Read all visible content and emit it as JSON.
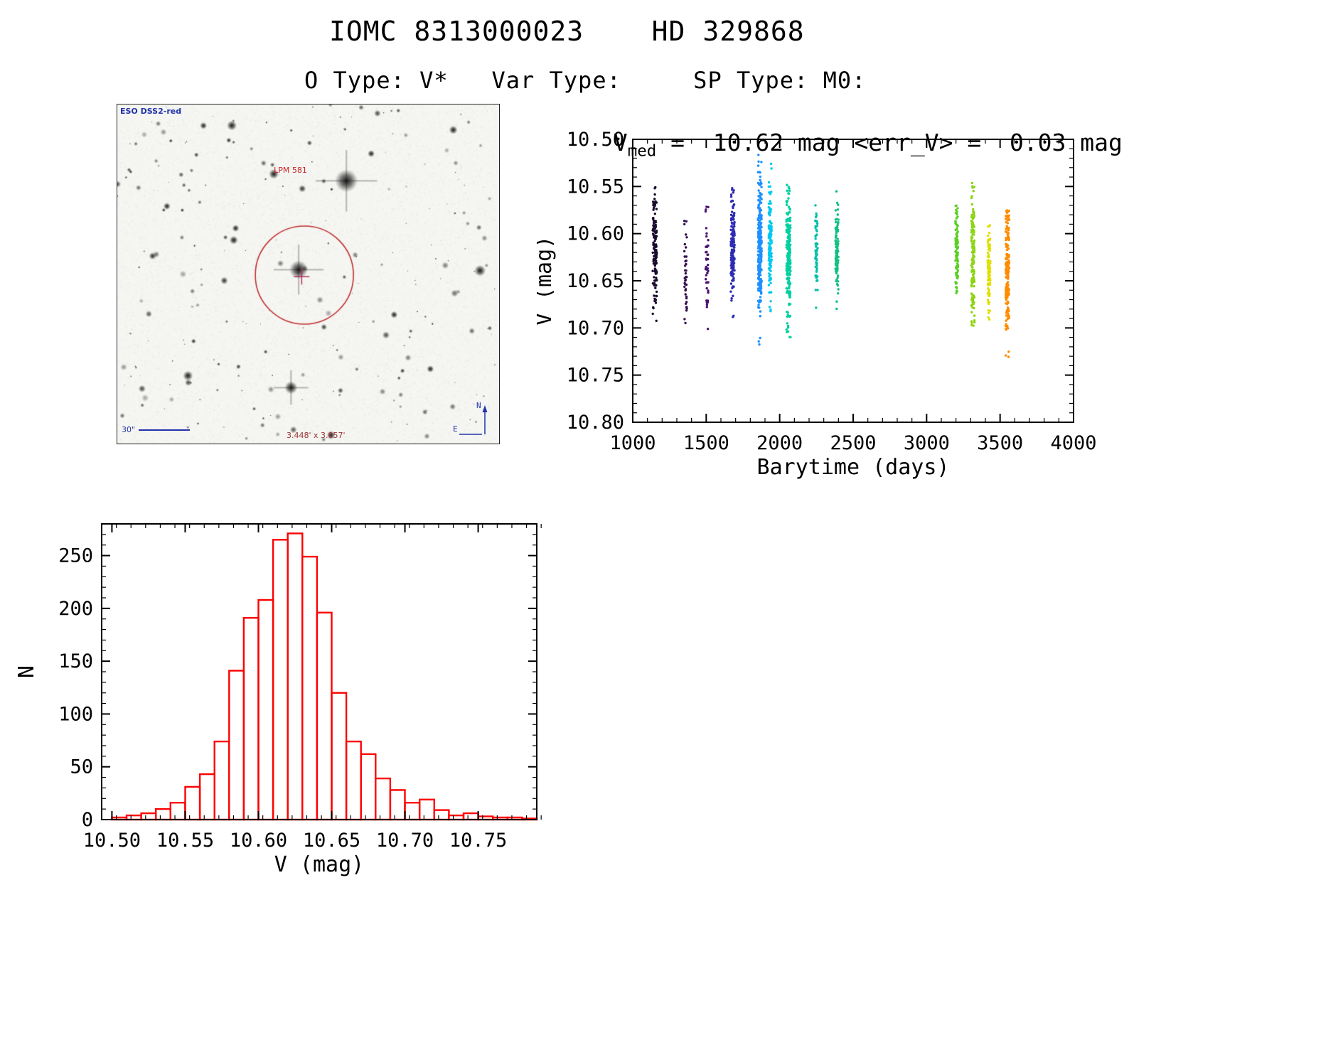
{
  "header": {
    "title": "IOMC 8313000023    HD 329868",
    "subtitle": "O Type: V*   Var Type:     SP Type: M0:"
  },
  "starfield": {
    "survey_label": "ESO DSS2-red",
    "star_label": "LPM 581",
    "scale_label": "30\"",
    "fov_label": "3.448' x 3.057'",
    "compass_north": "N",
    "compass_east": "E"
  },
  "colors": {
    "histogram_bar": "#ff0000",
    "target_circle": "#c03030",
    "target_cross": "#b03060",
    "annotation_blue": "#2233aa",
    "annotation_red": "#cc2222",
    "fov_red": "#993333"
  },
  "chart_data": [
    {
      "id": "lightcurve",
      "type": "scatter",
      "title": {
        "prefix": "V",
        "sub": "med",
        "rest": " =  10.62 mag <err_V> =  0.03 mag"
      },
      "xlabel": "Barytime (days)",
      "ylabel": "V (mag)",
      "xlim": [
        1000,
        4000
      ],
      "ylim": [
        10.5,
        10.8
      ],
      "y_inverted": true,
      "x_ticks": [
        1000,
        1500,
        2000,
        2500,
        3000,
        3500,
        4000
      ],
      "y_ticks": [
        10.5,
        10.55,
        10.6,
        10.65,
        10.7,
        10.75,
        10.8
      ],
      "x_minor_step": 100,
      "y_minor_step": 0.01,
      "x_tick_decimals": 0,
      "y_tick_decimals": 2,
      "median_v_mag": 10.62,
      "mean_error_mag": 0.03,
      "clusters": [
        {
          "x": 1150,
          "x_spread": 14,
          "color": "#1a0b2e",
          "n": 150,
          "y_mean": 10.615,
          "y_sigma": 0.03,
          "y_min": 10.545,
          "y_max": 10.705
        },
        {
          "x": 1360,
          "x_spread": 9,
          "color": "#36104f",
          "n": 40,
          "y_mean": 10.65,
          "y_sigma": 0.03,
          "y_min": 10.585,
          "y_max": 10.72
        },
        {
          "x": 1505,
          "x_spread": 9,
          "color": "#4a1472",
          "n": 45,
          "y_mean": 10.63,
          "y_sigma": 0.035,
          "y_min": 10.565,
          "y_max": 10.72
        },
        {
          "x": 1680,
          "x_spread": 13,
          "color": "#2d2db4",
          "n": 170,
          "y_mean": 10.615,
          "y_sigma": 0.028,
          "y_min": 10.55,
          "y_max": 10.72
        },
        {
          "x": 1865,
          "x_spread": 12,
          "color": "#1e90ff",
          "n": 260,
          "y_mean": 10.61,
          "y_sigma": 0.038,
          "y_min": 10.515,
          "y_max": 10.765
        },
        {
          "x": 1935,
          "x_spread": 10,
          "color": "#00c8f0",
          "n": 140,
          "y_mean": 10.605,
          "y_sigma": 0.03,
          "y_min": 10.52,
          "y_max": 10.74
        },
        {
          "x": 2060,
          "x_spread": 14,
          "color": "#00d0a0",
          "n": 210,
          "y_mean": 10.628,
          "y_sigma": 0.035,
          "y_min": 10.548,
          "y_max": 10.765
        },
        {
          "x": 2250,
          "x_spread": 8,
          "color": "#00c0a8",
          "n": 55,
          "y_mean": 10.615,
          "y_sigma": 0.025,
          "y_min": 10.565,
          "y_max": 10.685
        },
        {
          "x": 2390,
          "x_spread": 10,
          "color": "#10c080",
          "n": 95,
          "y_mean": 10.62,
          "y_sigma": 0.025,
          "y_min": 10.555,
          "y_max": 10.69
        },
        {
          "x": 3205,
          "x_spread": 9,
          "color": "#58d020",
          "n": 90,
          "y_mean": 10.618,
          "y_sigma": 0.022,
          "y_min": 10.57,
          "y_max": 10.665
        },
        {
          "x": 3315,
          "x_spread": 11,
          "color": "#8cd414",
          "n": 140,
          "y_mean": 10.625,
          "y_sigma": 0.035,
          "y_min": 10.545,
          "y_max": 10.755
        },
        {
          "x": 3425,
          "x_spread": 9,
          "color": "#e0e000",
          "n": 100,
          "y_mean": 10.638,
          "y_sigma": 0.026,
          "y_min": 10.585,
          "y_max": 10.75
        },
        {
          "x": 3550,
          "x_spread": 12,
          "color": "#ff8c00",
          "n": 190,
          "y_mean": 10.635,
          "y_sigma": 0.04,
          "y_min": 10.575,
          "y_max": 10.78
        }
      ]
    },
    {
      "id": "histogram",
      "type": "bar",
      "xlabel": "V (mag)",
      "ylabel": "N",
      "xlim": [
        10.493,
        10.79
      ],
      "ylim": [
        0,
        280
      ],
      "y_inverted": false,
      "x_ticks": [
        10.5,
        10.55,
        10.6,
        10.65,
        10.7,
        10.75
      ],
      "y_ticks": [
        0,
        50,
        100,
        150,
        200,
        250
      ],
      "x_minor_step": 0.01,
      "y_minor_step": 10,
      "x_tick_decimals": 2,
      "y_tick_decimals": 0,
      "bin_start": 10.5,
      "bin_width": 0.01,
      "counts": [
        2,
        4,
        6,
        10,
        16,
        31,
        43,
        74,
        141,
        191,
        208,
        265,
        271,
        249,
        196,
        120,
        74,
        62,
        39,
        28,
        16,
        19,
        9,
        4,
        6,
        3,
        2,
        2,
        1
      ]
    }
  ]
}
